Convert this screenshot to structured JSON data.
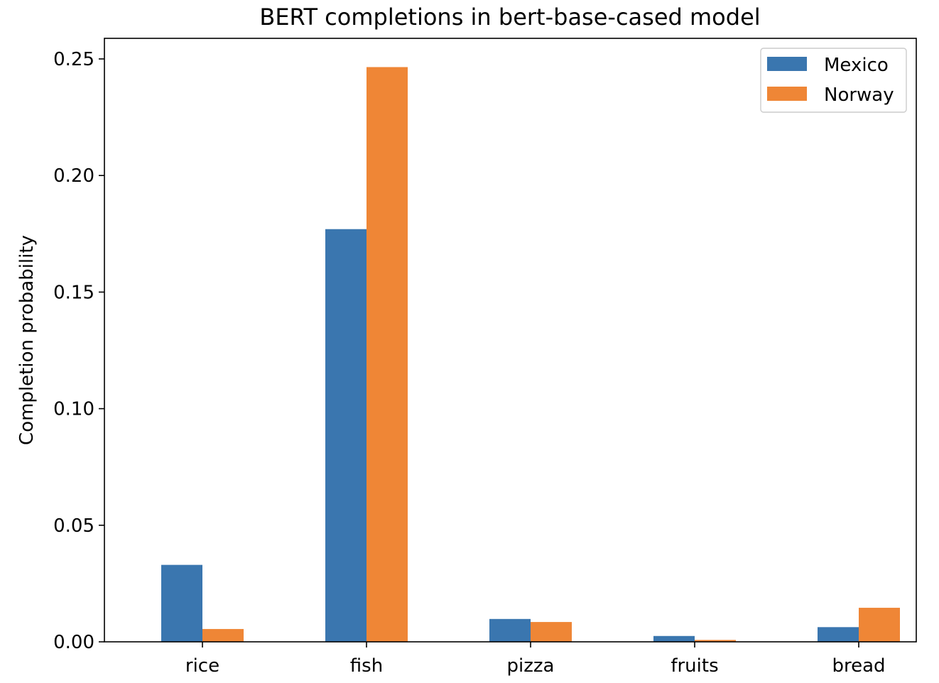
{
  "chart_data": {
    "type": "bar",
    "title": "BERT completions in bert-base-cased model",
    "xlabel": "",
    "ylabel": "Completion probability",
    "categories": [
      "rice",
      "fish",
      "pizza",
      "fruits",
      "bread"
    ],
    "series": [
      {
        "name": "Mexico",
        "color": "#3a76af",
        "values": [
          0.033,
          0.177,
          0.0098,
          0.0025,
          0.0063
        ]
      },
      {
        "name": "Norway",
        "color": "#ef8636",
        "values": [
          0.0055,
          0.2465,
          0.0085,
          0.0008,
          0.0146
        ]
      }
    ],
    "ylim": [
      0,
      0.25
    ],
    "yticks": [
      "0.00",
      "0.05",
      "0.10",
      "0.15",
      "0.20",
      "0.25"
    ],
    "grid": false,
    "legend_position": "top-right"
  }
}
